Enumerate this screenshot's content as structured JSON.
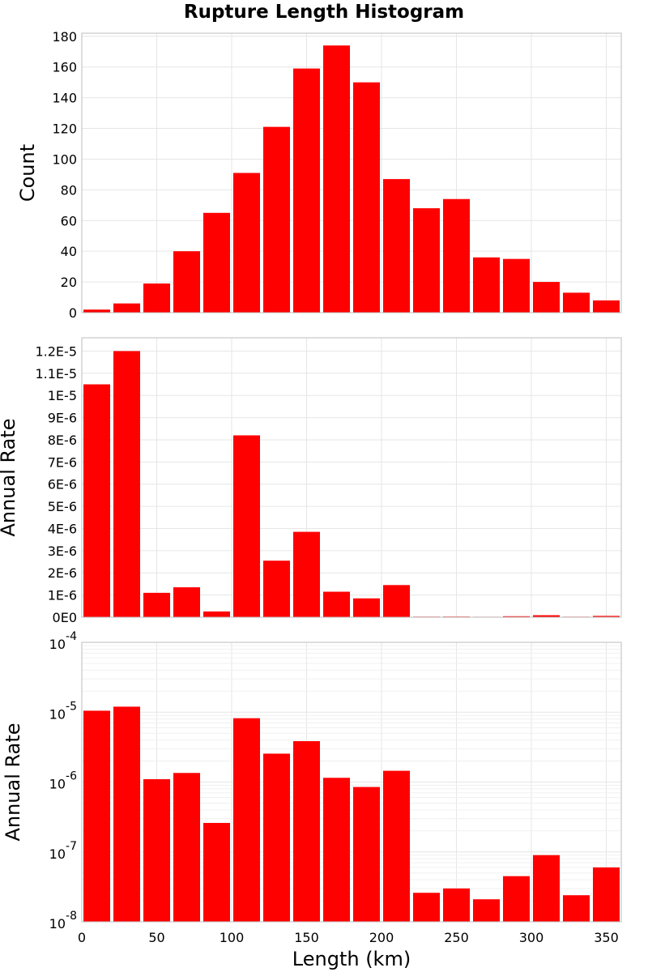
{
  "chart_data": [
    {
      "type": "bar",
      "title": "Rupture Length Histogram",
      "xlabel": "",
      "ylabel": "Count",
      "bin_width": 20,
      "x": [
        10,
        30,
        50,
        70,
        90,
        110,
        130,
        150,
        170,
        190,
        210,
        230,
        250,
        270,
        290,
        310,
        330,
        350
      ],
      "values": [
        2,
        6,
        19,
        40,
        65,
        91,
        121,
        159,
        174,
        150,
        87,
        68,
        74,
        36,
        35,
        20,
        13,
        8
      ],
      "xlim": [
        0,
        360
      ],
      "ylim": [
        0,
        182
      ],
      "yscale": "linear",
      "yticks": [
        0,
        20,
        40,
        60,
        80,
        100,
        120,
        140,
        160,
        180
      ],
      "ytick_labels": [
        "0",
        "20",
        "40",
        "60",
        "80",
        "100",
        "120",
        "140",
        "160",
        "180"
      ],
      "color": "#ff0000",
      "grid": true
    },
    {
      "type": "bar",
      "xlabel": "",
      "ylabel": "Annual Rate",
      "bin_width": 20,
      "x": [
        10,
        30,
        50,
        70,
        90,
        110,
        130,
        150,
        170,
        190,
        210,
        230,
        250,
        270,
        290,
        310,
        330,
        350
      ],
      "values": [
        1.05e-05,
        1.2e-05,
        1.1e-06,
        1.35e-06,
        2.6e-07,
        8.2e-06,
        2.55e-06,
        3.85e-06,
        1.15e-06,
        8.5e-07,
        1.45e-06,
        2.6e-08,
        3e-08,
        2.1e-08,
        4.5e-08,
        9e-08,
        2.4e-08,
        6e-08
      ],
      "xlim": [
        0,
        360
      ],
      "ylim": [
        0,
        1.26e-05
      ],
      "yscale": "linear",
      "yticks": [
        0,
        1e-06,
        2e-06,
        3e-06,
        4e-06,
        5e-06,
        6e-06,
        7e-06,
        8e-06,
        9e-06,
        1e-05,
        1.1e-05,
        1.2e-05
      ],
      "ytick_labels": [
        "0E0",
        "1E-6",
        "2E-6",
        "3E-6",
        "4E-6",
        "5E-6",
        "6E-6",
        "7E-6",
        "8E-6",
        "9E-6",
        "1E-5",
        "1.1E-5",
        "1.2E-5"
      ],
      "color": "#ff0000",
      "grid": true
    },
    {
      "type": "bar",
      "xlabel": "Length (km)",
      "ylabel": "Annual Rate",
      "bin_width": 20,
      "x": [
        10,
        30,
        50,
        70,
        90,
        110,
        130,
        150,
        170,
        190,
        210,
        230,
        250,
        270,
        290,
        310,
        330,
        350
      ],
      "values": [
        1.05e-05,
        1.2e-05,
        1.1e-06,
        1.35e-06,
        2.6e-07,
        8.2e-06,
        2.55e-06,
        3.85e-06,
        1.15e-06,
        8.5e-07,
        1.45e-06,
        2.6e-08,
        3e-08,
        2.1e-08,
        4.5e-08,
        9e-08,
        2.4e-08,
        6e-08
      ],
      "xlim": [
        0,
        360
      ],
      "ylim": [
        1e-08,
        0.0001
      ],
      "yscale": "log",
      "yticks": [
        1e-08,
        1e-07,
        1e-06,
        1e-05,
        0.0001
      ],
      "ytick_labels": [
        {
          "base": "10",
          "exp": "-8"
        },
        {
          "base": "10",
          "exp": "-7"
        },
        {
          "base": "10",
          "exp": "-6"
        },
        {
          "base": "10",
          "exp": "-5"
        },
        {
          "base": "10",
          "exp": "-4"
        }
      ],
      "xticks": [
        0,
        50,
        100,
        150,
        200,
        250,
        300,
        350
      ],
      "xtick_labels": [
        "0",
        "50",
        "100",
        "150",
        "200",
        "250",
        "300",
        "350"
      ],
      "color": "#ff0000",
      "grid": true
    }
  ]
}
